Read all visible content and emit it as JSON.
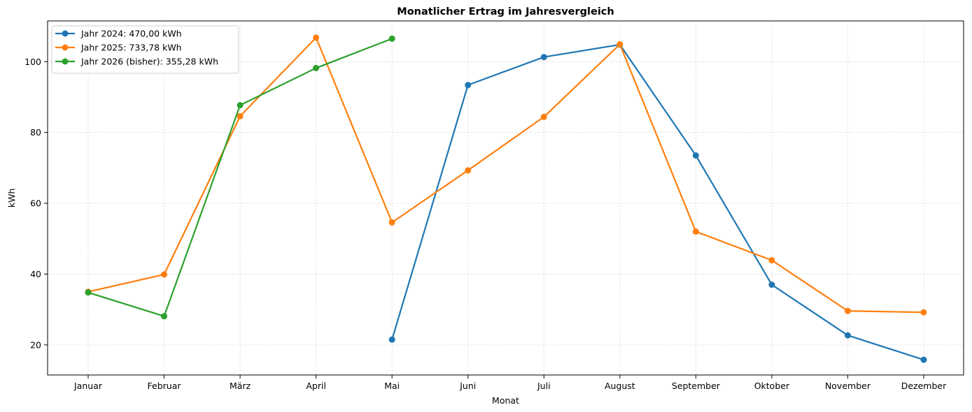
{
  "chart_data": {
    "type": "line",
    "title": "Monatlicher Ertrag im Jahresvergleich",
    "xlabel": "Monat",
    "ylabel": "kWh",
    "categories": [
      "Januar",
      "Februar",
      "März",
      "April",
      "Mai",
      "Juni",
      "Juli",
      "August",
      "September",
      "Oktober",
      "November",
      "Dezember"
    ],
    "ylim": [
      11.5,
      111.5
    ],
    "yticks": [
      20,
      40,
      60,
      80,
      100
    ],
    "grid": true,
    "legend_position": "top-left",
    "series": [
      {
        "name": "Jahr 2024: 470,00 kWh",
        "color": "#1f77b4",
        "values": [
          null,
          null,
          null,
          null,
          21.5,
          93.4,
          101.3,
          104.8,
          73.5,
          37.0,
          22.7,
          15.8
        ]
      },
      {
        "name": "Jahr 2025: 733,78 kWh",
        "color": "#ff7f0e",
        "values": [
          35.0,
          39.9,
          84.6,
          106.8,
          54.6,
          69.3,
          84.4,
          104.9,
          52.0,
          43.9,
          29.6,
          29.2
        ]
      },
      {
        "name": "Jahr 2026 (bisher): 355,28 kWh",
        "color": "#2ca02c",
        "values": [
          34.8,
          28.1,
          87.7,
          98.2,
          106.5,
          null,
          null,
          null,
          null,
          null,
          null,
          null
        ]
      }
    ]
  }
}
